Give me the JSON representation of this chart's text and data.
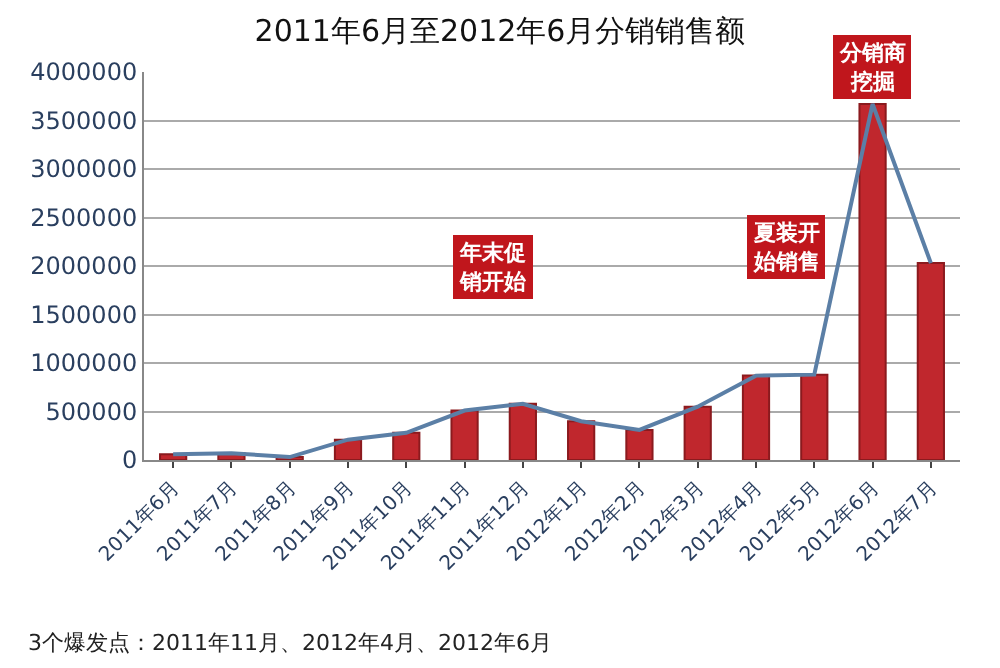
{
  "chart_data": {
    "type": "bar",
    "title": "2011年6月至2012年6月分销销售额",
    "categories": [
      "2011年6月",
      "2011年7月",
      "2011年8月",
      "2011年9月",
      "2011年10月",
      "2011年11月",
      "2011年12月",
      "2012年1月",
      "2012年2月",
      "2012年3月",
      "2012年4月",
      "2012年5月",
      "2012年6月",
      "2012年7月"
    ],
    "series": [
      {
        "color": "#c0272d",
        "values": [
          60000,
          70000,
          30000,
          210000,
          280000,
          510000,
          580000,
          400000,
          310000,
          550000,
          870000,
          880000,
          3670000,
          2030000
        ]
      },
      {
        "type": "line",
        "color": "#5b7fa6",
        "values": [
          60000,
          70000,
          30000,
          210000,
          280000,
          510000,
          580000,
          400000,
          310000,
          550000,
          870000,
          880000,
          3670000,
          2030000
        ]
      }
    ],
    "ylim": [
      0,
      4000000
    ],
    "yticks": [
      0,
      500000,
      1000000,
      1500000,
      2000000,
      2500000,
      3000000,
      3500000,
      4000000
    ],
    "grid": "y",
    "marker": "none",
    "line_style": "solid",
    "annotations": [
      "年末促销开始",
      "夏装开始销售",
      "分销商挖掘",
      "3个爆发点：2011年11月、2012年4月、2012年6月"
    ]
  }
}
